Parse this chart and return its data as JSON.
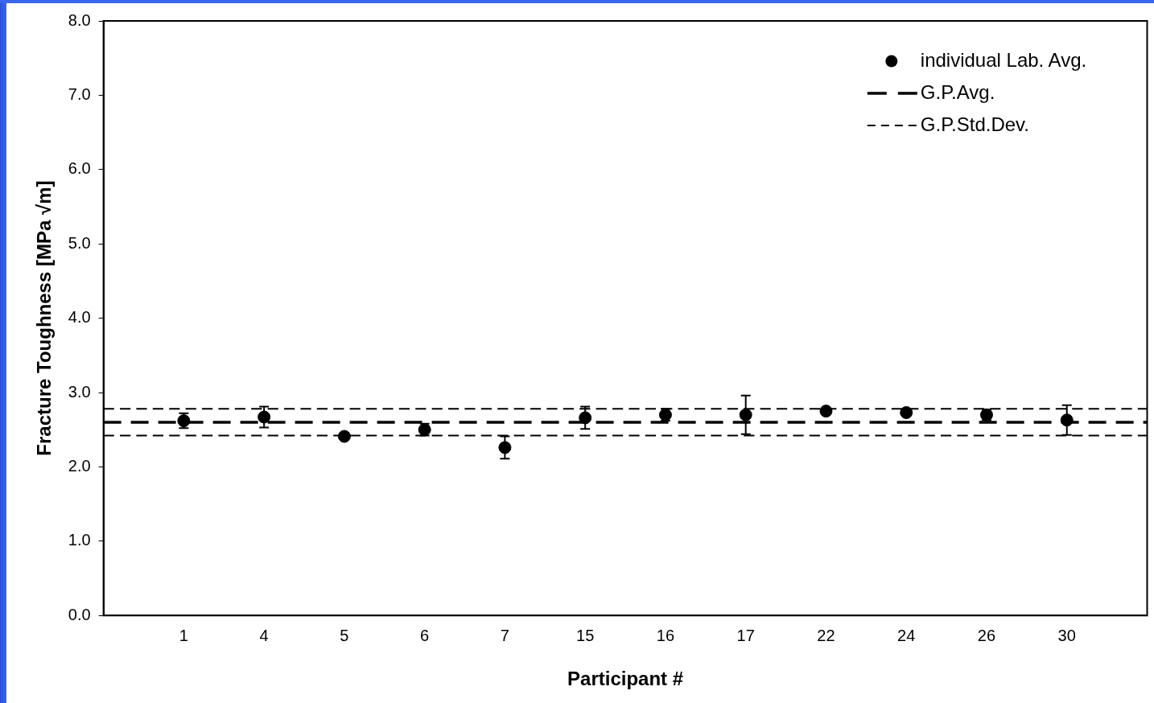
{
  "chart_data": {
    "type": "scatter",
    "xlabel": "Participant #",
    "ylabel": "Fracture Toughness [MPa √m]",
    "categories": [
      "1",
      "4",
      "5",
      "6",
      "7",
      "15",
      "16",
      "17",
      "22",
      "24",
      "26",
      "30"
    ],
    "series": [
      {
        "name": "individual Lab. Avg.",
        "color": "#000000",
        "values": [
          2.62,
          2.67,
          2.41,
          2.5,
          2.26,
          2.66,
          2.7,
          2.7,
          2.75,
          2.73,
          2.7,
          2.63
        ],
        "errors": [
          0.1,
          0.14,
          null,
          0.08,
          0.15,
          0.15,
          0.08,
          0.26,
          null,
          null,
          0.07,
          0.2
        ]
      }
    ],
    "ref_lines": [
      {
        "axis": "y",
        "value": 2.6,
        "label": "G.P.Avg.",
        "color": "#000000",
        "line_style": "dashed"
      },
      {
        "axis": "y",
        "value": 2.78,
        "label": "G.P.Std.Dev.",
        "color": "#000000",
        "line_style": "dashed"
      },
      {
        "axis": "y",
        "value": 2.42,
        "label": null,
        "color": "#000000",
        "line_style": "dashed"
      }
    ],
    "ylim": [
      0,
      8
    ],
    "yticks": [
      {
        "value": 0,
        "label": "0.0"
      },
      {
        "value": 1,
        "label": "1.0"
      },
      {
        "value": 2,
        "label": "2.0"
      },
      {
        "value": 3,
        "label": "3.0"
      },
      {
        "value": 4,
        "label": "4.0"
      },
      {
        "value": 5,
        "label": "5.0"
      },
      {
        "value": 6,
        "label": "6.0"
      },
      {
        "value": 7,
        "label": "7.0"
      },
      {
        "value": 8,
        "label": "8.0"
      }
    ],
    "grid": false,
    "legend": "top right",
    "marker": "circle"
  }
}
